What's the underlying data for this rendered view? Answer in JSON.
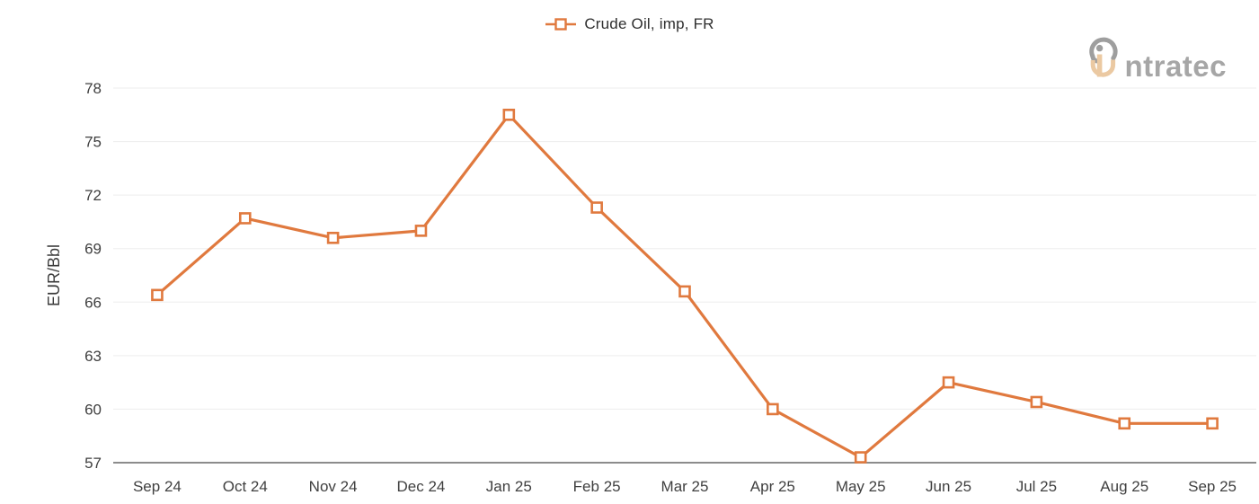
{
  "logo": {
    "brand": "intratec",
    "text_part": "ntratec",
    "mark_gray": "#9e9e9e",
    "mark_tan": "#ebc9a2"
  },
  "legend": {
    "label": "Crude Oil, imp, FR"
  },
  "chart_data": {
    "type": "line",
    "title": "",
    "legend": [
      "Crude Oil, imp, FR"
    ],
    "legend_position": "top-center",
    "xlabel": "",
    "ylabel": "EUR/Bbl",
    "categories": [
      "Sep 24",
      "Oct 24",
      "Nov 24",
      "Dec 24",
      "Jan 25",
      "Feb 25",
      "Mar 25",
      "Apr 25",
      "May 25",
      "Jun 25",
      "Jul 25",
      "Aug 25",
      "Sep 25"
    ],
    "series": [
      {
        "name": "Crude Oil, imp, FR",
        "values": [
          66.4,
          70.7,
          69.6,
          70.0,
          76.5,
          71.3,
          66.6,
          60.0,
          57.3,
          61.5,
          60.4,
          59.2,
          59.2
        ],
        "color": "#e0793e",
        "marker": "hollow-square"
      }
    ],
    "ylim": [
      57,
      78
    ],
    "yticks": [
      57,
      60,
      63,
      66,
      69,
      72,
      75,
      78
    ],
    "grid": "horizontal-only",
    "colors": {
      "series": "#e0793e",
      "grid_line": "#ededed",
      "axis_line": "#8c8c8c",
      "tick_text": "#3f3f3f",
      "marker_fill": "#ffffff"
    }
  }
}
